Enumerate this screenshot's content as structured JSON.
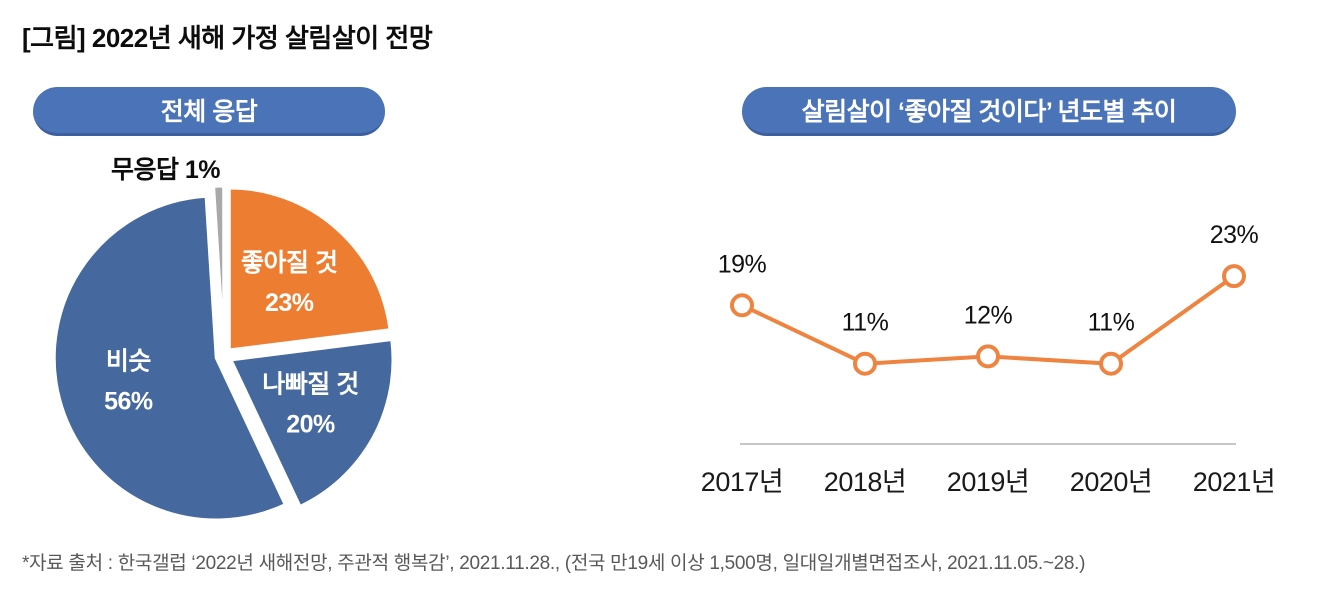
{
  "page": {
    "title": "[그림] 2022년 새해 가정 살림살이 전망",
    "footer": "*자료 출처 : 한국갤럽 ‘2022년 새해전망, 주관적 행복감’, 2021.11.28., (전국 만19세 이상 1,500명, 일대일개별면접조사, 2021.11.05.~28.)"
  },
  "left_panel": {
    "badge": "전체 응답",
    "no_response_label": "무응답 1%"
  },
  "right_panel": {
    "badge": "살림살이 ‘좋아질 것이다’ 년도별 추이"
  },
  "colors": {
    "badge_bg": "#4A73B8",
    "badge_border": "#3C5F9F",
    "pie_blue": "#45689E",
    "pie_orange": "#ED7D31",
    "pie_gray": "#A9A9A9",
    "line_orange": "#EF8340",
    "axis_gray": "#B3B3B3"
  },
  "chart_data": [
    {
      "type": "pie",
      "title": "전체 응답",
      "order": "clockwise",
      "start_angle_deg": 0,
      "value_suffix": "%",
      "slices": [
        {
          "label": "좋아질 것",
          "value": 23,
          "color": "#ED7D31",
          "text_color": "#ffffff",
          "inside_label": true
        },
        {
          "label": "나빠질 것",
          "value": 20,
          "color": "#45689E",
          "text_color": "#ffffff",
          "inside_label": true
        },
        {
          "label": "비슷",
          "value": 56,
          "color": "#45689E",
          "text_color": "#ffffff",
          "inside_label": true
        },
        {
          "label": "무응답",
          "value": 1,
          "color": "#A9A9A9",
          "text_color": "#0d0d0d",
          "inside_label": false,
          "external_label": "무응답 1%"
        }
      ]
    },
    {
      "type": "line",
      "title": "살림살이 ‘좋아질 것이다’ 년도별 추이",
      "categories": [
        "2017년",
        "2018년",
        "2019년",
        "2020년",
        "2021년"
      ],
      "values": [
        19,
        11,
        12,
        11,
        23
      ],
      "labels": [
        "19%",
        "11%",
        "12%",
        "11%",
        "23%"
      ],
      "value_suffix": "%",
      "line_color": "#EF8340",
      "marker": "circle-open",
      "marker_fill": "#ffffff",
      "ylim": [
        0,
        28
      ],
      "grid": false,
      "legend": "none",
      "axis_line_color": "#B3B3B3"
    }
  ]
}
